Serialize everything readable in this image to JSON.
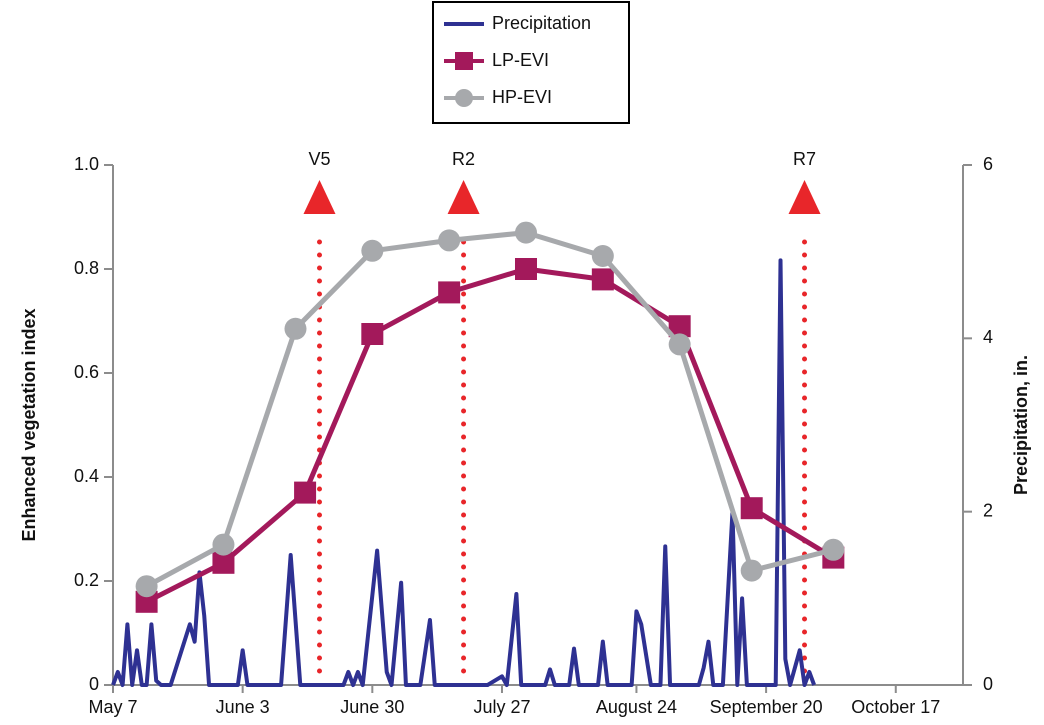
{
  "chart_data": {
    "type": "line",
    "xlim": [
      0,
      177
    ],
    "xticks": [
      {
        "value": 0,
        "label": "May 7"
      },
      {
        "value": 27,
        "label": "June 3"
      },
      {
        "value": 54,
        "label": "June 30"
      },
      {
        "value": 81,
        "label": "July 27"
      },
      {
        "value": 109,
        "label": "August 24"
      },
      {
        "value": 136,
        "label": "September 20"
      },
      {
        "value": 163,
        "label": "October 17"
      }
    ],
    "ylim": [
      0,
      1
    ],
    "yticks": [
      0,
      0.2,
      0.4,
      0.6,
      0.8,
      {
        "value": 1,
        "label": "1.0"
      }
    ],
    "y2lim": [
      0,
      6
    ],
    "y2ticks": [
      0,
      2,
      4,
      6
    ],
    "ylabel": "Enhanced vegetation index",
    "y2label": "Precipitation, in.",
    "series": [
      {
        "name": "Precipitation",
        "color": "#2e3192",
        "axis": "y2",
        "marker": "none",
        "x": [
          0,
          1,
          2,
          3,
          4,
          5,
          6,
          7,
          8,
          9,
          10,
          12,
          16,
          17,
          18,
          19,
          20,
          26,
          27,
          28,
          35,
          37,
          39,
          48,
          49,
          50,
          51,
          52,
          55,
          57,
          58,
          60,
          61,
          64,
          66,
          67,
          78,
          81,
          82,
          84,
          85,
          90,
          91,
          92,
          95,
          96,
          97,
          101,
          102,
          103,
          108,
          109,
          110,
          112,
          114,
          115,
          116,
          122,
          123,
          124,
          125,
          127,
          129,
          130,
          131,
          132,
          138,
          139,
          140,
          141,
          143,
          144,
          145,
          146
        ],
        "values": [
          0,
          0.15,
          0,
          0.7,
          0,
          0.4,
          0,
          0,
          0.7,
          0.05,
          0,
          0,
          0.7,
          0.5,
          1.3,
          0.8,
          0,
          0,
          0.4,
          0,
          0,
          1.5,
          0,
          0,
          0.15,
          0,
          0.15,
          0,
          1.55,
          0.15,
          0,
          1.18,
          0,
          0,
          0.75,
          0,
          0,
          0.1,
          0,
          1.05,
          0,
          0,
          0.18,
          0,
          0,
          0.42,
          0,
          0,
          0.5,
          0,
          0,
          0.85,
          0.7,
          0,
          0,
          1.6,
          0,
          0,
          0.2,
          0.5,
          0,
          0,
          2.0,
          0,
          1.0,
          0,
          0,
          4.9,
          0.3,
          0,
          0.4,
          0,
          0.15,
          0
        ]
      },
      {
        "name": "LP-EVI",
        "color": "#a3195b",
        "marker": "square",
        "x": [
          7,
          23,
          40,
          54,
          70,
          86,
          102,
          118,
          133,
          150
        ],
        "values": [
          0.16,
          0.235,
          0.37,
          0.675,
          0.755,
          0.8,
          0.78,
          0.69,
          0.34,
          0.245
        ]
      },
      {
        "name": "HP-EVI",
        "color": "#a7a9ac",
        "marker": "circle",
        "x": [
          7,
          23,
          38,
          54,
          70,
          86,
          102,
          118,
          133,
          150
        ],
        "values": [
          0.19,
          0.27,
          0.685,
          0.835,
          0.855,
          0.87,
          0.825,
          0.655,
          0.22,
          0.26
        ]
      }
    ],
    "annotations": [
      {
        "label": "V5",
        "x": 43
      },
      {
        "label": "R2",
        "x": 73
      },
      {
        "label": "R7",
        "x": 144
      }
    ],
    "annotation_color": "#e8262a"
  }
}
